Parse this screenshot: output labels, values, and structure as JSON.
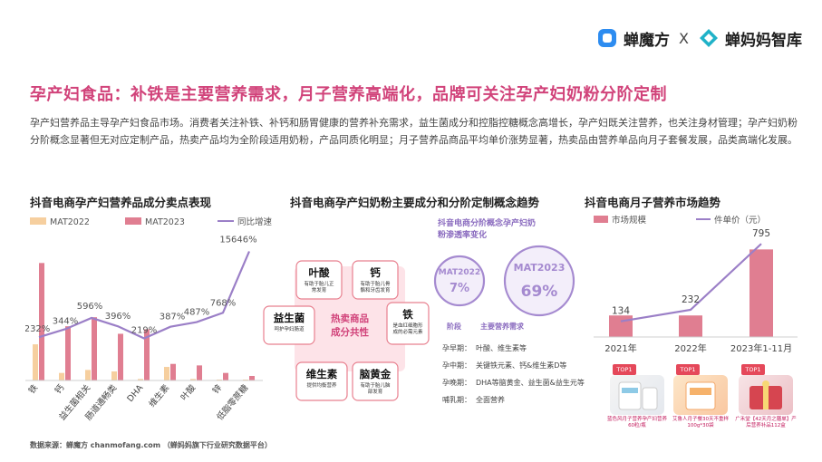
{
  "brand": {
    "name1": "蝉魔方",
    "x": "X",
    "name2": "蝉妈妈智库"
  },
  "title": "孕产妇食品：补铁是主要营养需求，月子营养高端化，品牌可关注孕产妇奶粉分阶定制",
  "description": "孕产妇营养品主导孕产妇食品市场。消费者关注补铁、补钙和肠胃健康的营养补充需求，益生菌成分和控脂控糖概念高增长，孕产妇既关注营养，也关注身材管理；孕产妇奶粉分阶概念显著但无对应定制产品，热卖产品均为全阶段适用奶粉，产品同质化明显；月子营养品商品平均单价涨势显著，热卖品由营养单品向月子套餐发展，品类高端化发展。",
  "colors": {
    "accent": "#d1437a",
    "mat2022": "#f6cf9f",
    "mat2023": "#e07e91",
    "growth": "#9b7fc7",
    "tile_border": "#e8808f",
    "circle": "#a58ad0"
  },
  "chart_data": [
    {
      "type": "bar",
      "title": "抖音电商孕产妇营养品成分卖点表现",
      "categories": [
        "铁",
        "钙",
        "益生菌相关",
        "肠道通畅类",
        "DHA",
        "维生素",
        "叶酸",
        "锌",
        "低脂零蔗糖"
      ],
      "series": [
        {
          "name": "MAT2022",
          "values": [
            12,
            2.5,
            3.5,
            3,
            0.5,
            4.5,
            0.5,
            0.3,
            0.3
          ]
        },
        {
          "name": "MAT2023",
          "values": [
            39,
            18,
            21,
            15.5,
            17,
            5.5,
            5,
            2.5,
            1.5
          ]
        },
        {
          "name": "同比增速",
          "values": [
            232,
            344,
            596,
            396,
            219,
            387,
            487,
            768,
            15646
          ]
        }
      ],
      "data_labels": [
        "232%",
        "344%",
        "596%",
        "396%",
        "219%",
        "387%",
        "487%",
        "768%",
        "15646%"
      ]
    },
    {
      "type": "line",
      "title": "抖音电商月子营养市场趋势",
      "categories": [
        "2021年",
        "2022年",
        "2023年1-11月"
      ],
      "series": [
        {
          "name": "市场规模",
          "values": [
            15,
            15,
            61
          ]
        },
        {
          "name": "件单价（元）",
          "values": [
            134,
            232,
            795
          ]
        }
      ]
    }
  ],
  "milk": {
    "title": "抖音电商孕产妇奶粉主要成分和分阶定制概念趋势",
    "center": "热卖商品成分共性",
    "tiles": [
      {
        "name": "叶酸",
        "desc": "有助于胎儿正常发育"
      },
      {
        "name": "钙",
        "desc": "有助于胎儿骨骼和牙齿发育"
      },
      {
        "name": "铁",
        "desc": "是血红细胞形成的必需元素"
      },
      {
        "name": "脑黄金",
        "desc": "有助于胎儿脑部发育"
      },
      {
        "name": "维生素",
        "desc": "提供均衡营养"
      },
      {
        "name": "益生菌",
        "desc": "呵护孕妇肠道"
      }
    ],
    "penetration_title": "抖音电商分阶概念孕产妇奶粉渗透率变化",
    "circles": [
      {
        "label": "MAT2022",
        "value": "7%"
      },
      {
        "label": "MAT2023",
        "value": "69%"
      }
    ],
    "stage_header": "阶段",
    "need_header": "主要营养需求",
    "stages": [
      {
        "stage": "孕早期：",
        "need": "叶酸、维生素等"
      },
      {
        "stage": "孕中期：",
        "need": "关键铁元素、钙&维生素D等"
      },
      {
        "stage": "孕晚期：",
        "need": "DHA等脑黄金、益生菌&益生元等"
      },
      {
        "stage": "哺乳期：",
        "need": "全面营养"
      }
    ]
  },
  "products": [
    {
      "badge": "TOP1",
      "caption": "蓝色风月子营养孕产妇营养60粒/瓶"
    },
    {
      "badge": "TOP1",
      "caption": "艾鲁人月子餐30天不重样100g*30袋"
    },
    {
      "badge": "TOP1",
      "caption": "广禾堂【42天月之膳单】产后营养补品112盒"
    }
  ],
  "footer": "数据来源：蝉魔方 chanmofang.com （蝉妈妈旗下行业研究数据平台）"
}
